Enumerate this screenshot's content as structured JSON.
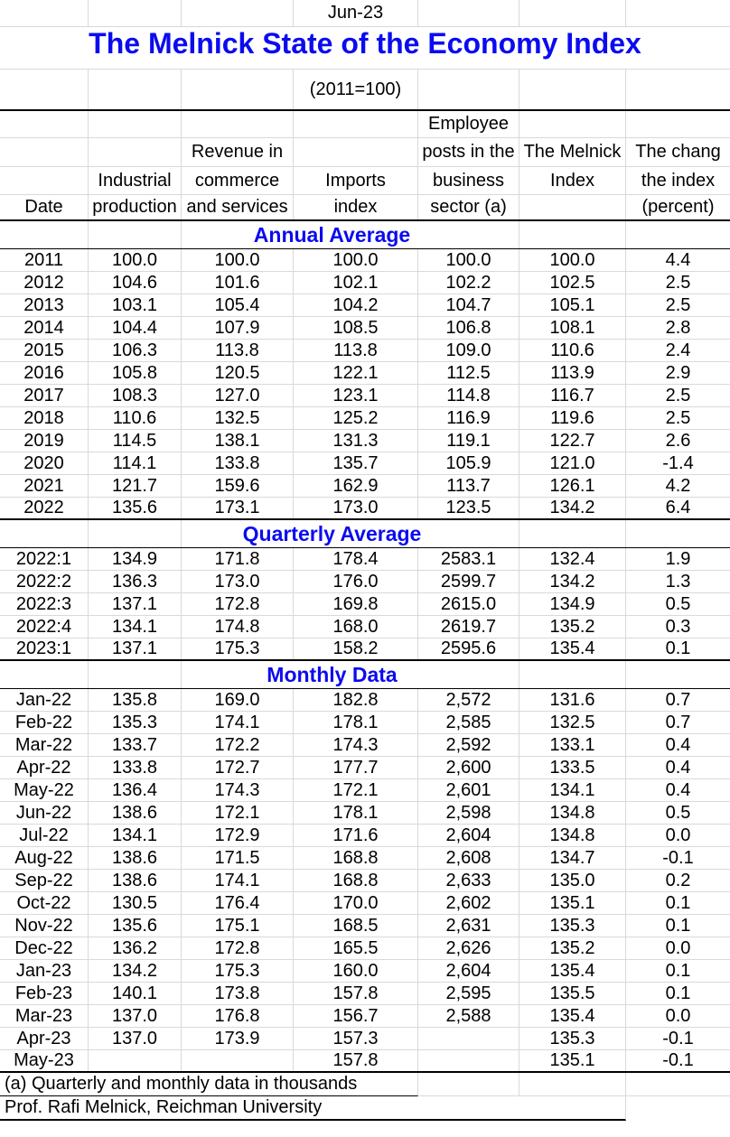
{
  "colors": {
    "title_blue": "#0b0bf0",
    "section_blue": "#0b0bf0",
    "gridline": "#d9d9d9",
    "section_border": "#000000"
  },
  "header": {
    "date_label": "Jun-23",
    "title": "The Melnick State of the Economy Index",
    "subtitle": "(2011=100)"
  },
  "columns": [
    {
      "name": "date",
      "lines": [
        "",
        "",
        "",
        "Date"
      ]
    },
    {
      "name": "industrial-production",
      "lines": [
        "",
        "",
        "Industrial",
        "production"
      ]
    },
    {
      "name": "revenue-commerce-services",
      "lines": [
        "",
        "Revenue in",
        "commerce",
        "and services"
      ]
    },
    {
      "name": "imports-index",
      "lines": [
        "",
        "",
        "Imports",
        "index"
      ]
    },
    {
      "name": "employee-posts",
      "lines": [
        "Employee",
        "posts in the",
        "business",
        "sector (a)"
      ]
    },
    {
      "name": "melnick-index",
      "lines": [
        "",
        "The Melnick",
        "Index",
        ""
      ]
    },
    {
      "name": "index-change-percent",
      "lines": [
        "",
        "The chang",
        "the index",
        "(percent)"
      ]
    }
  ],
  "sections": [
    {
      "title": "Annual Average",
      "rows": [
        [
          "2011",
          "100.0",
          "100.0",
          "100.0",
          "100.0",
          "100.0",
          "4.4"
        ],
        [
          "2012",
          "104.6",
          "101.6",
          "102.1",
          "102.2",
          "102.5",
          "2.5"
        ],
        [
          "2013",
          "103.1",
          "105.4",
          "104.2",
          "104.7",
          "105.1",
          "2.5"
        ],
        [
          "2014",
          "104.4",
          "107.9",
          "108.5",
          "106.8",
          "108.1",
          "2.8"
        ],
        [
          "2015",
          "106.3",
          "113.8",
          "113.8",
          "109.0",
          "110.6",
          "2.4"
        ],
        [
          "2016",
          "105.8",
          "120.5",
          "122.1",
          "112.5",
          "113.9",
          "2.9"
        ],
        [
          "2017",
          "108.3",
          "127.0",
          "123.1",
          "114.8",
          "116.7",
          "2.5"
        ],
        [
          "2018",
          "110.6",
          "132.5",
          "125.2",
          "116.9",
          "119.6",
          "2.5"
        ],
        [
          "2019",
          "114.5",
          "138.1",
          "131.3",
          "119.1",
          "122.7",
          "2.6"
        ],
        [
          "2020",
          "114.1",
          "133.8",
          "135.7",
          "105.9",
          "121.0",
          "-1.4"
        ],
        [
          "2021",
          "121.7",
          "159.6",
          "162.9",
          "113.7",
          "126.1",
          "4.2"
        ],
        [
          "2022",
          "135.6",
          "173.1",
          "173.0",
          "123.5",
          "134.2",
          "6.4"
        ]
      ]
    },
    {
      "title": "Quarterly Average",
      "rows": [
        [
          "2022:1",
          "134.9",
          "171.8",
          "178.4",
          "2583.1",
          "132.4",
          "1.9"
        ],
        [
          "2022:2",
          "136.3",
          "173.0",
          "176.0",
          "2599.7",
          "134.2",
          "1.3"
        ],
        [
          "2022:3",
          "137.1",
          "172.8",
          "169.8",
          "2615.0",
          "134.9",
          "0.5"
        ],
        [
          "2022:4",
          "134.1",
          "174.8",
          "168.0",
          "2619.7",
          "135.2",
          "0.3"
        ],
        [
          "2023:1",
          "137.1",
          "175.3",
          "158.2",
          "2595.6",
          "135.4",
          "0.1"
        ]
      ]
    },
    {
      "title": "Monthly Data",
      "rows": [
        [
          "Jan-22",
          "135.8",
          "169.0",
          "182.8",
          "2,572",
          "131.6",
          "0.7"
        ],
        [
          "Feb-22",
          "135.3",
          "174.1",
          "178.1",
          "2,585",
          "132.5",
          "0.7"
        ],
        [
          "Mar-22",
          "133.7",
          "172.2",
          "174.3",
          "2,592",
          "133.1",
          "0.4"
        ],
        [
          "Apr-22",
          "133.8",
          "172.7",
          "177.7",
          "2,600",
          "133.5",
          "0.4"
        ],
        [
          "May-22",
          "136.4",
          "174.3",
          "172.1",
          "2,601",
          "134.1",
          "0.4"
        ],
        [
          "Jun-22",
          "138.6",
          "172.1",
          "178.1",
          "2,598",
          "134.8",
          "0.5"
        ],
        [
          "Jul-22",
          "134.1",
          "172.9",
          "171.6",
          "2,604",
          "134.8",
          "0.0"
        ],
        [
          "Aug-22",
          "138.6",
          "171.5",
          "168.8",
          "2,608",
          "134.7",
          "-0.1"
        ],
        [
          "Sep-22",
          "138.6",
          "174.1",
          "168.8",
          "2,633",
          "135.0",
          "0.2"
        ],
        [
          "Oct-22",
          "130.5",
          "176.4",
          "170.0",
          "2,602",
          "135.1",
          "0.1"
        ],
        [
          "Nov-22",
          "135.6",
          "175.1",
          "168.5",
          "2,631",
          "135.3",
          "0.1"
        ],
        [
          "Dec-22",
          "136.2",
          "172.8",
          "165.5",
          "2,626",
          "135.2",
          "0.0"
        ],
        [
          "Jan-23",
          "134.2",
          "175.3",
          "160.0",
          "2,604",
          "135.4",
          "0.1"
        ],
        [
          "Feb-23",
          "140.1",
          "173.8",
          "157.8",
          "2,595",
          "135.5",
          "0.1"
        ],
        [
          "Mar-23",
          "137.0",
          "176.8",
          "156.7",
          "2,588",
          "135.4",
          "0.0"
        ],
        [
          "Apr-23",
          "137.0",
          "173.9",
          "157.3",
          "",
          "135.3",
          "-0.1"
        ],
        [
          "May-23",
          "",
          "",
          "157.8",
          "",
          "135.1",
          "-0.1"
        ]
      ]
    }
  ],
  "footnotes": {
    "note_a": "(a) Quarterly and monthly data in thousands",
    "credit": "Prof. Rafi Melnick, Reichman University"
  }
}
